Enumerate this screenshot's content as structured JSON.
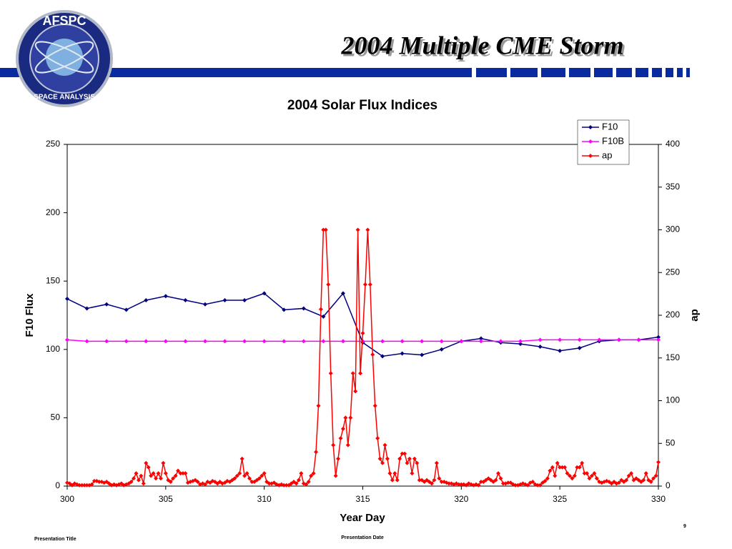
{
  "slide": {
    "title": "2004 Multiple CME Storm",
    "logo_top": "AFSPC",
    "logo_bottom": "SPACE ANALYSIS",
    "footer_left": "Presentation Title",
    "footer_center": "Presentation Date",
    "page_number": "9"
  },
  "chart_data": {
    "type": "line",
    "title": "2004 Solar Flux Indices",
    "x_label": "Year Day",
    "y_label": "F10 Flux",
    "y2_label": "ap",
    "xlim": [
      300,
      330
    ],
    "xticks": [
      300,
      305,
      310,
      315,
      320,
      325,
      330
    ],
    "ylim": [
      0,
      250
    ],
    "yticks": [
      0,
      50,
      100,
      150,
      200,
      250
    ],
    "y2lim": [
      0,
      400
    ],
    "y2ticks": [
      0,
      50,
      100,
      150,
      200,
      250,
      300,
      350,
      400
    ],
    "legend": "top-right",
    "x": [
      300,
      301,
      302,
      303,
      304,
      305,
      306,
      307,
      308,
      309,
      310,
      311,
      312,
      313,
      314,
      315,
      316,
      317,
      318,
      319,
      320,
      321,
      322,
      323,
      324,
      325,
      326,
      327,
      328,
      329,
      330
    ],
    "series": [
      {
        "name": "F10",
        "color": "#000080",
        "values": [
          137,
          130,
          133,
          129,
          136,
          139,
          136,
          133,
          136,
          136,
          141,
          129,
          130,
          124,
          141,
          105,
          95,
          97,
          96,
          100,
          106,
          108,
          105,
          104,
          102,
          99,
          101,
          106,
          107,
          107,
          109
        ]
      },
      {
        "name": "F10B",
        "color": "#ff00ff",
        "values": [
          107,
          106,
          106,
          106,
          106,
          106,
          106,
          106,
          106,
          106,
          106,
          106,
          106,
          106,
          106,
          106,
          106,
          106,
          106,
          106,
          106,
          106,
          106,
          106,
          107,
          107,
          107,
          107,
          107,
          107,
          107
        ]
      },
      {
        "name": "ap",
        "color": "#ff0000",
        "axis": "y2",
        "x": [
          300,
          300.125,
          300.25,
          300.375,
          300.5,
          300.625,
          300.75,
          300.875,
          301,
          301.125,
          301.25,
          301.375,
          301.5,
          301.625,
          301.75,
          301.875,
          302,
          302.125,
          302.25,
          302.375,
          302.5,
          302.625,
          302.75,
          302.875,
          303,
          303.125,
          303.25,
          303.375,
          303.5,
          303.625,
          303.75,
          303.875,
          304,
          304.125,
          304.25,
          304.375,
          304.5,
          304.625,
          304.75,
          304.875,
          305,
          305.125,
          305.25,
          305.375,
          305.5,
          305.625,
          305.75,
          305.875,
          306,
          306.125,
          306.25,
          306.375,
          306.5,
          306.625,
          306.75,
          306.875,
          307,
          307.125,
          307.25,
          307.375,
          307.5,
          307.625,
          307.75,
          307.875,
          308,
          308.125,
          308.25,
          308.375,
          308.5,
          308.625,
          308.75,
          308.875,
          309,
          309.125,
          309.25,
          309.375,
          309.5,
          309.625,
          309.75,
          309.875,
          310,
          310.125,
          310.25,
          310.375,
          310.5,
          310.625,
          310.75,
          310.875,
          311,
          311.125,
          311.25,
          311.375,
          311.5,
          311.625,
          311.75,
          311.875,
          312,
          312.125,
          312.25,
          312.375,
          312.5,
          312.625,
          312.75,
          312.875,
          313,
          313.125,
          313.25,
          313.375,
          313.5,
          313.625,
          313.75,
          313.875,
          314,
          314.125,
          314.25,
          314.375,
          314.5,
          314.625,
          314.75,
          314.875,
          315,
          315.125,
          315.25,
          315.375,
          315.5,
          315.625,
          315.75,
          315.875,
          316,
          316.125,
          316.25,
          316.375,
          316.5,
          316.625,
          316.75,
          316.875,
          317,
          317.125,
          317.25,
          317.375,
          317.5,
          317.625,
          317.75,
          317.875,
          318,
          318.125,
          318.25,
          318.375,
          318.5,
          318.625,
          318.75,
          318.875,
          319,
          319.125,
          319.25,
          319.375,
          319.5,
          319.625,
          319.75,
          319.875,
          320,
          320.125,
          320.25,
          320.375,
          320.5,
          320.625,
          320.75,
          320.875,
          321,
          321.125,
          321.25,
          321.375,
          321.5,
          321.625,
          321.75,
          321.875,
          322,
          322.125,
          322.25,
          322.375,
          322.5,
          322.625,
          322.75,
          322.875,
          323,
          323.125,
          323.25,
          323.375,
          323.5,
          323.625,
          323.75,
          323.875,
          324,
          324.125,
          324.25,
          324.375,
          324.5,
          324.625,
          324.75,
          324.875,
          325,
          325.125,
          325.25,
          325.375,
          325.5,
          325.625,
          325.75,
          325.875,
          326,
          326.125,
          326.25,
          326.375,
          326.5,
          326.625,
          326.75,
          326.875,
          327,
          327.125,
          327.25,
          327.375,
          327.5,
          327.625,
          327.75,
          327.875,
          328,
          328.125,
          328.25,
          328.375,
          328.5,
          328.625,
          328.75,
          328.875,
          329,
          329.125,
          329.25,
          329.375,
          329.5,
          329.625,
          329.75,
          329.875,
          330
        ],
        "values": [
          4,
          3,
          1,
          3,
          2,
          1,
          1,
          1,
          1,
          1,
          2,
          6,
          6,
          5,
          5,
          4,
          5,
          3,
          1,
          2,
          1,
          2,
          3,
          1,
          2,
          3,
          5,
          9,
          15,
          7,
          12,
          3,
          27,
          22,
          12,
          15,
          9,
          15,
          9,
          27,
          15,
          7,
          5,
          9,
          12,
          18,
          15,
          15,
          15,
          4,
          5,
          6,
          7,
          5,
          2,
          3,
          2,
          5,
          4,
          6,
          5,
          3,
          5,
          3,
          4,
          6,
          5,
          7,
          9,
          12,
          15,
          32,
          12,
          15,
          9,
          5,
          5,
          7,
          9,
          12,
          15,
          5,
          3,
          3,
          4,
          2,
          1,
          2,
          1,
          1,
          1,
          3,
          5,
          3,
          7,
          15,
          3,
          2,
          5,
          12,
          15,
          40,
          94,
          207,
          300,
          300,
          236,
          132,
          48,
          12,
          32,
          56,
          67,
          80,
          48,
          80,
          132,
          111,
          300,
          132,
          179,
          236,
          300,
          236,
          154,
          94,
          56,
          32,
          27,
          48,
          32,
          15,
          7,
          15,
          7,
          32,
          38,
          38,
          27,
          32,
          15,
          32,
          27,
          7,
          7,
          5,
          7,
          5,
          3,
          7,
          27,
          9,
          5,
          5,
          4,
          3,
          3,
          2,
          3,
          2,
          2,
          2,
          1,
          3,
          2,
          1,
          2,
          1,
          5,
          5,
          7,
          9,
          7,
          5,
          7,
          15,
          9,
          3,
          3,
          4,
          4,
          2,
          1,
          1,
          2,
          3,
          2,
          1,
          4,
          5,
          2,
          1,
          1,
          4,
          6,
          9,
          18,
          22,
          12,
          27,
          22,
          22,
          22,
          15,
          12,
          9,
          12,
          22,
          22,
          27,
          15,
          15,
          9,
          12,
          15,
          9,
          5,
          4,
          5,
          6,
          5,
          3,
          5,
          3,
          4,
          7,
          5,
          7,
          12,
          15,
          7,
          9,
          7,
          5,
          7,
          15,
          7,
          5,
          9,
          12,
          28
        ]
      }
    ]
  }
}
